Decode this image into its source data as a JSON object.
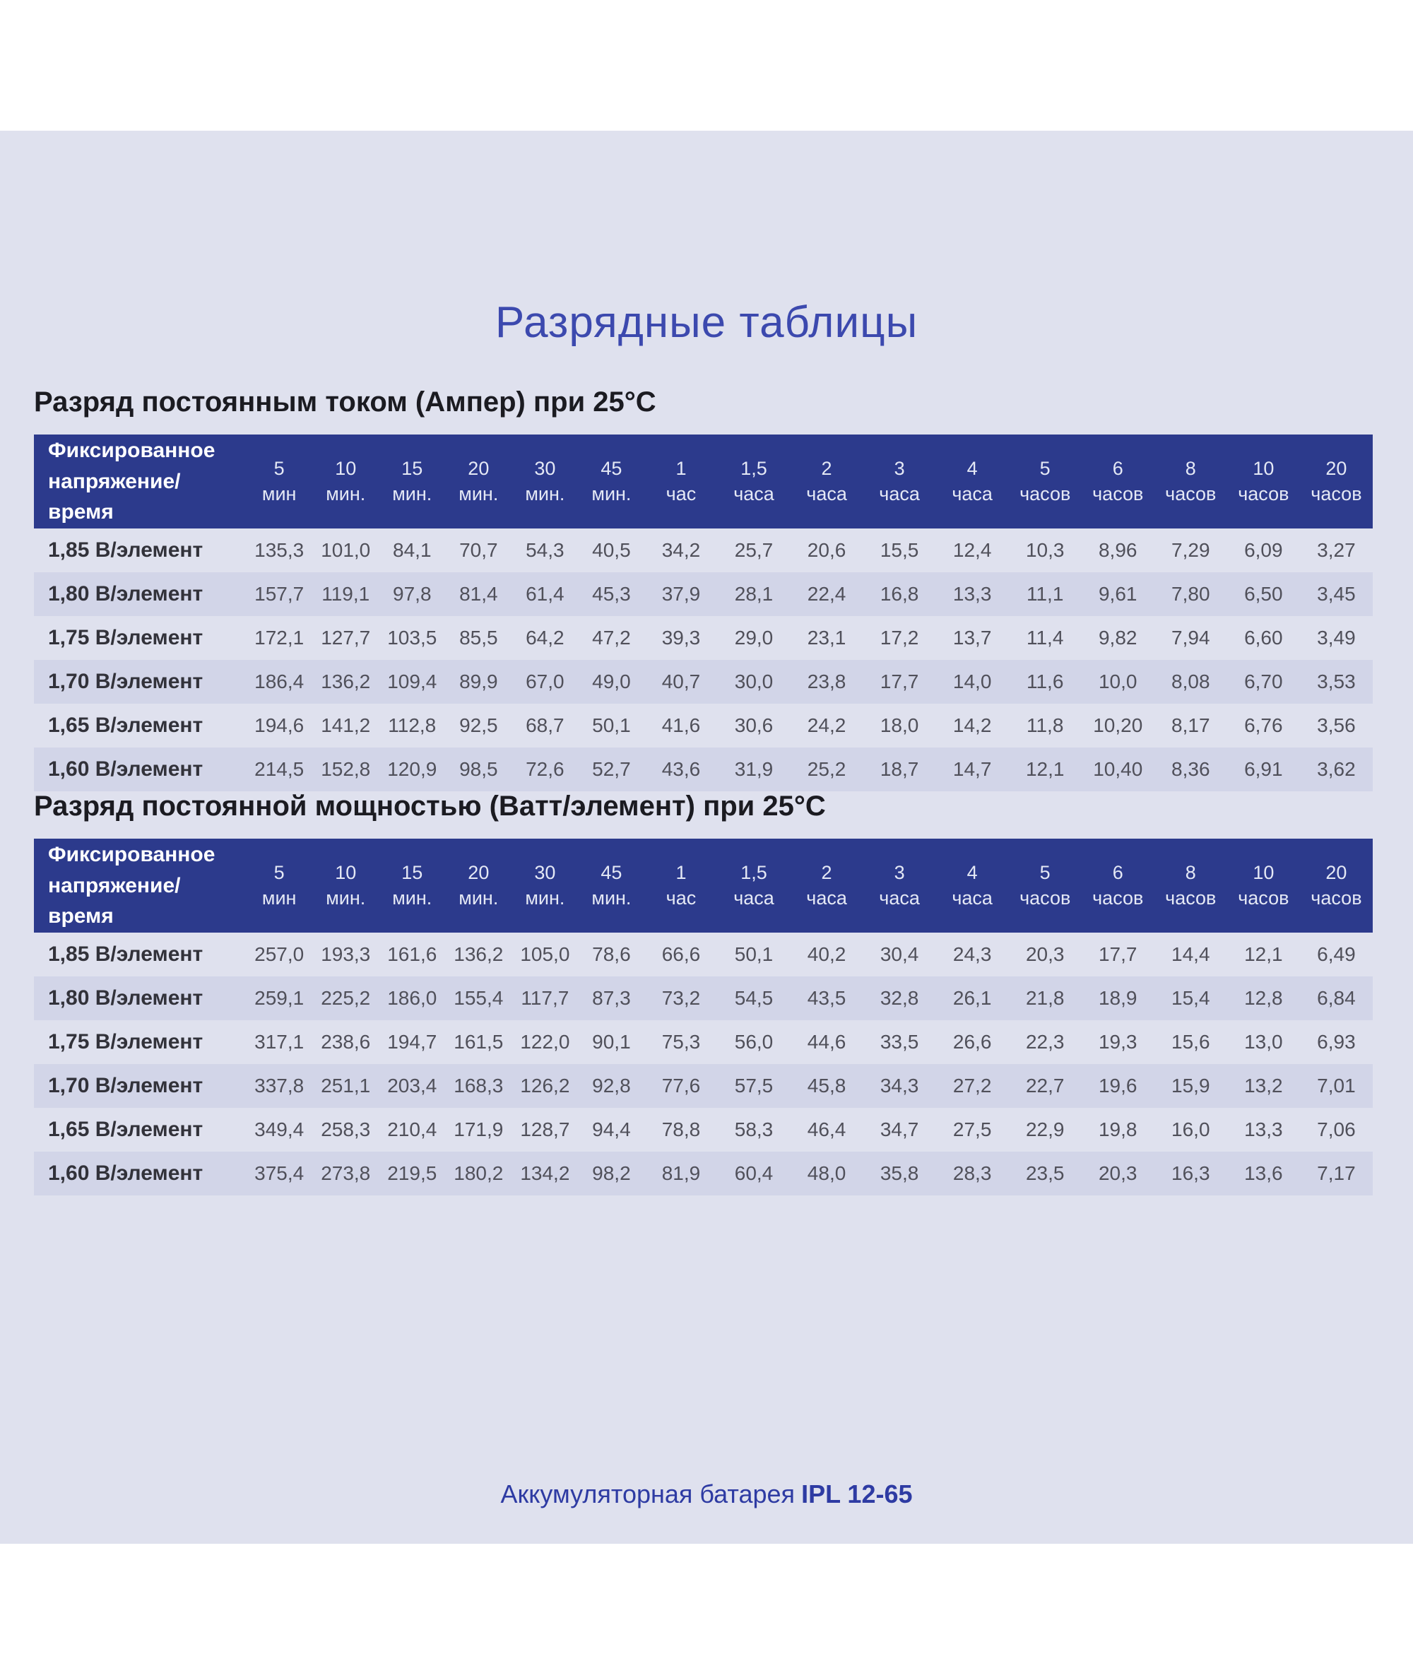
{
  "page": {
    "title": "Разрядные таблицы",
    "footer": {
      "prefix": "Аккумуляторная батарея",
      "model": "IPL 12-65"
    }
  },
  "colors": {
    "band_background": "#dfe1ee",
    "header_navy": "#2c3a8c",
    "row_stripe": "#d2d5e8",
    "title_blue": "#3c49ae",
    "footer_blue": "#2e3ba3",
    "heading_text": "#1b1b21",
    "value_text": "#50505a",
    "label_text": "#32323a"
  },
  "corner_label": "Фиксированное напряжение/время",
  "time_columns": [
    {
      "value": "5",
      "unit": "мин"
    },
    {
      "value": "10",
      "unit": "мин."
    },
    {
      "value": "15",
      "unit": "мин."
    },
    {
      "value": "20",
      "unit": "мин."
    },
    {
      "value": "30",
      "unit": "мин."
    },
    {
      "value": "45",
      "unit": "мин."
    },
    {
      "value": "1",
      "unit": "час"
    },
    {
      "value": "1,5",
      "unit": "часа"
    },
    {
      "value": "2",
      "unit": "часа"
    },
    {
      "value": "3",
      "unit": "часа"
    },
    {
      "value": "4",
      "unit": "часа"
    },
    {
      "value": "5",
      "unit": "часов"
    },
    {
      "value": "6",
      "unit": "часов"
    },
    {
      "value": "8",
      "unit": "часов"
    },
    {
      "value": "10",
      "unit": "часов"
    },
    {
      "value": "20",
      "unit": "часов"
    }
  ],
  "tables": [
    {
      "slug": "constant-current-amps",
      "heading": "Разряд постоянным током (Ампер) при 25°C",
      "rows": [
        {
          "label": "1,85 В/элемент",
          "values": [
            "135,3",
            "101,0",
            "84,1",
            "70,7",
            "54,3",
            "40,5",
            "34,2",
            "25,7",
            "20,6",
            "15,5",
            "12,4",
            "10,3",
            "8,96",
            "7,29",
            "6,09",
            "3,27"
          ]
        },
        {
          "label": "1,80 В/элемент",
          "values": [
            "157,7",
            "119,1",
            "97,8",
            "81,4",
            "61,4",
            "45,3",
            "37,9",
            "28,1",
            "22,4",
            "16,8",
            "13,3",
            "11,1",
            "9,61",
            "7,80",
            "6,50",
            "3,45"
          ]
        },
        {
          "label": "1,75 В/элемент",
          "values": [
            "172,1",
            "127,7",
            "103,5",
            "85,5",
            "64,2",
            "47,2",
            "39,3",
            "29,0",
            "23,1",
            "17,2",
            "13,7",
            "11,4",
            "9,82",
            "7,94",
            "6,60",
            "3,49"
          ]
        },
        {
          "label": "1,70 В/элемент",
          "values": [
            "186,4",
            "136,2",
            "109,4",
            "89,9",
            "67,0",
            "49,0",
            "40,7",
            "30,0",
            "23,8",
            "17,7",
            "14,0",
            "11,6",
            "10,0",
            "8,08",
            "6,70",
            "3,53"
          ]
        },
        {
          "label": "1,65 В/элемент",
          "values": [
            "194,6",
            "141,2",
            "112,8",
            "92,5",
            "68,7",
            "50,1",
            "41,6",
            "30,6",
            "24,2",
            "18,0",
            "14,2",
            "11,8",
            "10,20",
            "8,17",
            "6,76",
            "3,56"
          ]
        },
        {
          "label": "1,60 В/элемент",
          "values": [
            "214,5",
            "152,8",
            "120,9",
            "98,5",
            "72,6",
            "52,7",
            "43,6",
            "31,9",
            "25,2",
            "18,7",
            "14,7",
            "12,1",
            "10,40",
            "8,36",
            "6,91",
            "3,62"
          ]
        }
      ]
    },
    {
      "slug": "constant-power-watts",
      "heading": "Разряд постоянной мощностью (Ватт/элемент) при 25°C",
      "rows": [
        {
          "label": "1,85 В/элемент",
          "values": [
            "257,0",
            "193,3",
            "161,6",
            "136,2",
            "105,0",
            "78,6",
            "66,6",
            "50,1",
            "40,2",
            "30,4",
            "24,3",
            "20,3",
            "17,7",
            "14,4",
            "12,1",
            "6,49"
          ]
        },
        {
          "label": "1,80 В/элемент",
          "values": [
            "259,1",
            "225,2",
            "186,0",
            "155,4",
            "117,7",
            "87,3",
            "73,2",
            "54,5",
            "43,5",
            "32,8",
            "26,1",
            "21,8",
            "18,9",
            "15,4",
            "12,8",
            "6,84"
          ]
        },
        {
          "label": "1,75 В/элемент",
          "values": [
            "317,1",
            "238,6",
            "194,7",
            "161,5",
            "122,0",
            "90,1",
            "75,3",
            "56,0",
            "44,6",
            "33,5",
            "26,6",
            "22,3",
            "19,3",
            "15,6",
            "13,0",
            "6,93"
          ]
        },
        {
          "label": "1,70 В/элемент",
          "values": [
            "337,8",
            "251,1",
            "203,4",
            "168,3",
            "126,2",
            "92,8",
            "77,6",
            "57,5",
            "45,8",
            "34,3",
            "27,2",
            "22,7",
            "19,6",
            "15,9",
            "13,2",
            "7,01"
          ]
        },
        {
          "label": "1,65 В/элемент",
          "values": [
            "349,4",
            "258,3",
            "210,4",
            "171,9",
            "128,7",
            "94,4",
            "78,8",
            "58,3",
            "46,4",
            "34,7",
            "27,5",
            "22,9",
            "19,8",
            "16,0",
            "13,3",
            "7,06"
          ]
        },
        {
          "label": "1,60 В/элемент",
          "values": [
            "375,4",
            "273,8",
            "219,5",
            "180,2",
            "134,2",
            "98,2",
            "81,9",
            "60,4",
            "48,0",
            "35,8",
            "28,3",
            "23,5",
            "20,3",
            "16,3",
            "13,6",
            "7,17"
          ]
        }
      ]
    }
  ]
}
